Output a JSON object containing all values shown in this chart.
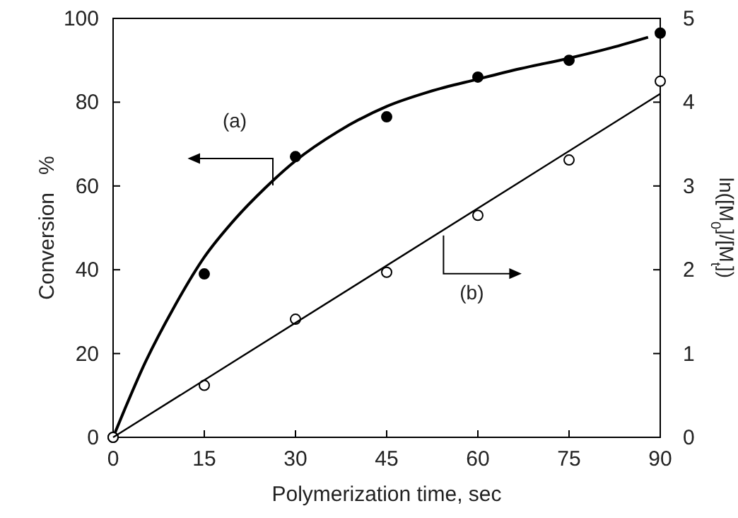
{
  "chart_data": {
    "type": "scatter",
    "xlabel": "Polymerization time, sec",
    "ylabel": "Conversion   %",
    "y2label": "ln([M$_{0}$]/[M$_{t}$])",
    "xlim": [
      0,
      90
    ],
    "xticks": [
      0,
      15,
      30,
      45,
      60,
      75,
      90
    ],
    "ylim": [
      0,
      100
    ],
    "yticks": [
      0,
      20,
      40,
      60,
      80,
      100
    ],
    "y2lim": [
      0,
      5
    ],
    "y2ticks": [
      0,
      1,
      2,
      3,
      4,
      5
    ],
    "grid": false,
    "series": [
      {
        "marker": "circle",
        "color": "#000000",
        "x": [
          0,
          15,
          30,
          45,
          60,
          75,
          90
        ],
        "values": [
          0,
          39,
          67,
          76.5,
          86,
          90,
          96.5
        ]
      },
      {
        "type": "line",
        "color": "#000000",
        "x": [
          0,
          2,
          5,
          10,
          15,
          20,
          25,
          30,
          37,
          45,
          52,
          60,
          67,
          75,
          82,
          88
        ],
        "values": [
          0,
          7,
          17,
          31,
          43,
          52,
          59.5,
          66,
          73,
          79,
          82.5,
          85.5,
          88,
          90.5,
          93,
          95.5
        ]
      },
      {
        "marker": "circle",
        "axis": "y2",
        "color": "#000000",
        "x": [
          0,
          15,
          30,
          45,
          60,
          75,
          90
        ],
        "values": [
          0,
          0.62,
          1.41,
          1.97,
          2.65,
          3.31,
          4.25
        ]
      },
      {
        "type": "line",
        "axis": "y2",
        "color": "#000000",
        "x": [
          0,
          90
        ],
        "values": [
          0,
          4.1
        ]
      }
    ],
    "annotations": [
      "(a)",
      "(b)"
    ]
  }
}
